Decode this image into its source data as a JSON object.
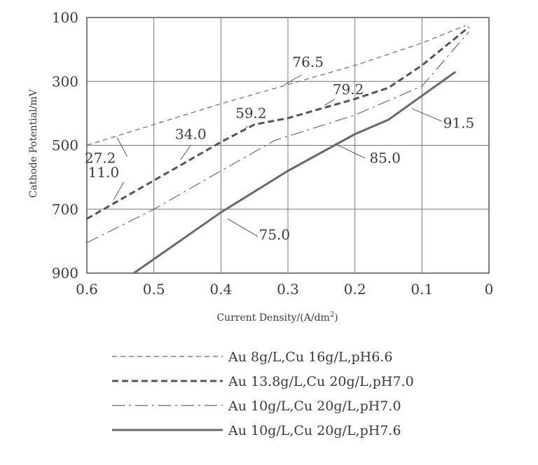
{
  "chart_data": {
    "type": "line",
    "title": "",
    "xlabel": "Current Density/(A/dm",
    "xlabel_sup": "2",
    "xlabel_close": ")",
    "ylabel": "Cathode Potential/mV",
    "x_reversed": true,
    "y_reversed": true,
    "xlim": [
      0.6,
      0.0
    ],
    "ylim": [
      100,
      900
    ],
    "grid": true,
    "legend_position": "bottom",
    "x_tick_labels": [
      "0.6",
      "0.5",
      "0.4",
      "0.3",
      "0.2",
      "0.1",
      "0"
    ],
    "y_tick_labels": [
      "100",
      "300",
      "500",
      "700",
      "900"
    ],
    "series": [
      {
        "name": "Au 8g/L,Cu 16g/L,pH6.6",
        "style": "dashed-thin",
        "color": "#6a6a6a",
        "points": [
          [
            0.6,
            500
          ],
          [
            0.5,
            435
          ],
          [
            0.4,
            370
          ],
          [
            0.3,
            310
          ],
          [
            0.2,
            250
          ],
          [
            0.1,
            180
          ],
          [
            0.035,
            125
          ]
        ]
      },
      {
        "name": "Au 13.8g/L,Cu 20g/L,pH7.0",
        "style": "dashed-thick",
        "color": "#555555",
        "points": [
          [
            0.6,
            730
          ],
          [
            0.5,
            610
          ],
          [
            0.4,
            490
          ],
          [
            0.35,
            435
          ],
          [
            0.3,
            415
          ],
          [
            0.2,
            355
          ],
          [
            0.15,
            320
          ],
          [
            0.1,
            250
          ],
          [
            0.03,
            130
          ]
        ]
      },
      {
        "name": "Au 10g/L,Cu 20g/L,pH7.0",
        "style": "dash-dot",
        "color": "#6a6a6a",
        "points": [
          [
            0.6,
            805
          ],
          [
            0.5,
            700
          ],
          [
            0.4,
            580
          ],
          [
            0.32,
            485
          ],
          [
            0.2,
            405
          ],
          [
            0.1,
            315
          ],
          [
            0.03,
            145
          ]
        ]
      },
      {
        "name": "Au 10g/L,Cu 20g/L,pH7.6",
        "style": "solid-thick",
        "color": "#6a6a6a",
        "points": [
          [
            0.53,
            900
          ],
          [
            0.4,
            710
          ],
          [
            0.3,
            580
          ],
          [
            0.2,
            465
          ],
          [
            0.15,
            420
          ],
          [
            0.1,
            345
          ],
          [
            0.05,
            270
          ]
        ]
      }
    ],
    "annotations": [
      {
        "text": "76.5",
        "x": 0.27,
        "y": 255,
        "lx1": 0.28,
        "ly1": 280,
        "lx2": 0.305,
        "ly2": 310
      },
      {
        "text": "79.2",
        "x": 0.21,
        "y": 340,
        "lx1": 0.23,
        "ly1": 355,
        "lx2": 0.245,
        "ly2": 375
      },
      {
        "text": "59.2",
        "x": 0.355,
        "y": 415,
        "lx1": 0.36,
        "ly1": 440,
        "lx2": 0.37,
        "ly2": 460
      },
      {
        "text": "34.0",
        "x": 0.445,
        "y": 480,
        "lx1": 0.445,
        "ly1": 500,
        "lx2": 0.46,
        "ly2": 545
      },
      {
        "text": "91.5",
        "x": 0.045,
        "y": 445,
        "lx1": 0.07,
        "ly1": 425,
        "lx2": 0.115,
        "ly2": 385
      },
      {
        "text": "85.0",
        "x": 0.155,
        "y": 555,
        "lx1": 0.185,
        "ly1": 540,
        "lx2": 0.23,
        "ly2": 495
      },
      {
        "text": "27.2",
        "x": 0.58,
        "y": 555,
        "lx1": 0.54,
        "ly1": 535,
        "lx2": 0.555,
        "ly2": 475
      },
      {
        "text": "11.0",
        "x": 0.575,
        "y": 600,
        "lx1": 0.545,
        "ly1": 615,
        "lx2": 0.56,
        "ly2": 670
      },
      {
        "text": "75.0",
        "x": 0.32,
        "y": 795,
        "lx1": 0.345,
        "ly1": 785,
        "lx2": 0.39,
        "ly2": 730
      }
    ]
  }
}
